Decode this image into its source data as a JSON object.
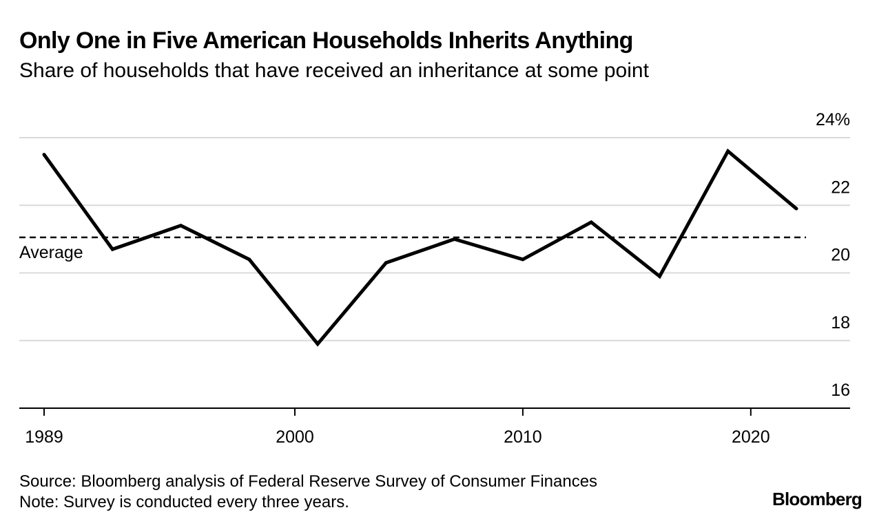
{
  "header": {
    "title": "Only One in Five American Households Inherits Anything",
    "subtitle": "Share of households that have received an inheritance at some point"
  },
  "chart_data": {
    "type": "line",
    "x": [
      1989,
      1992,
      1995,
      1998,
      2001,
      2004,
      2007,
      2010,
      2013,
      2016,
      2019,
      2022
    ],
    "series": [
      {
        "name": "Share of households",
        "values": [
          23.5,
          20.7,
          21.4,
          20.4,
          17.9,
          20.3,
          21.0,
          20.4,
          21.5,
          19.9,
          23.6,
          21.9
        ]
      }
    ],
    "average": {
      "label": "Average",
      "value": 21.05
    },
    "ylim": [
      16,
      24
    ],
    "yticks": [
      16,
      18,
      20,
      22,
      24
    ],
    "ytick_labels": [
      "16",
      "18",
      "20",
      "22",
      "24%"
    ],
    "xticks": [
      1989,
      2000,
      2010,
      2020
    ],
    "xtick_labels": [
      "1989",
      "2000",
      "2010",
      "2020"
    ],
    "colors": {
      "line": "#000000",
      "grid": "#d9d9d9",
      "axis": "#000000"
    }
  },
  "footer": {
    "source": "Source: Bloomberg analysis of Federal Reserve Survey of Consumer Finances",
    "note": "Note: Survey is conducted every three years.",
    "brand": "Bloomberg"
  }
}
